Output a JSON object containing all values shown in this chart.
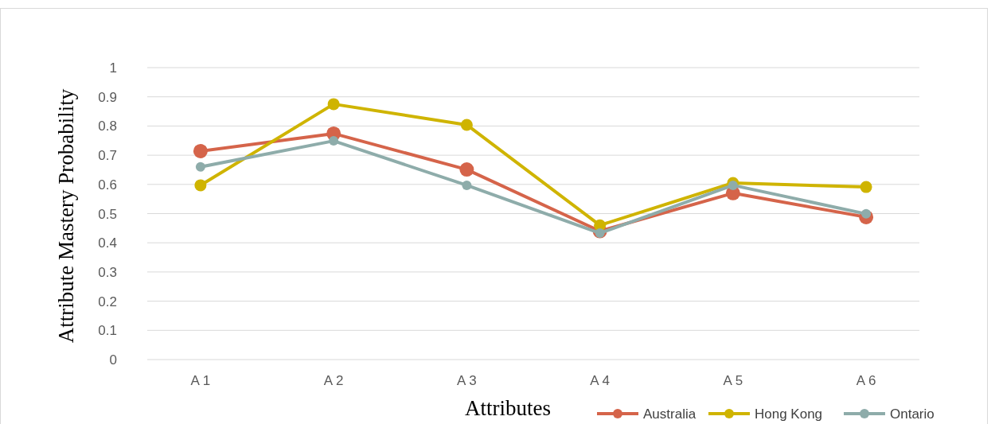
{
  "chart_data": {
    "type": "line",
    "xlabel": "Attributes",
    "ylabel": "Attribute Mastery Probability",
    "categories": [
      "A 1",
      "A 2",
      "A 3",
      "A 4",
      "A 5",
      "A 6"
    ],
    "series": [
      {
        "name": "Australia",
        "color": "#d5644a",
        "values": [
          0.714,
          0.774,
          0.651,
          0.44,
          0.57,
          0.488
        ]
      },
      {
        "name": "Hong Kong",
        "color": "#cfb400",
        "values": [
          0.597,
          0.875,
          0.804,
          0.46,
          0.605,
          0.591
        ]
      },
      {
        "name": "Ontario",
        "color": "#8eacaa",
        "values": [
          0.66,
          0.749,
          0.597,
          0.433,
          0.597,
          0.499
        ]
      }
    ],
    "ylim": [
      0,
      1
    ],
    "yticks": [
      0,
      0.1,
      0.2,
      0.3,
      0.4,
      0.5,
      0.6,
      0.7,
      0.8,
      0.9,
      1
    ],
    "grid": "y",
    "legend": "bottom right",
    "marker": "circle",
    "line_style": "solid"
  }
}
